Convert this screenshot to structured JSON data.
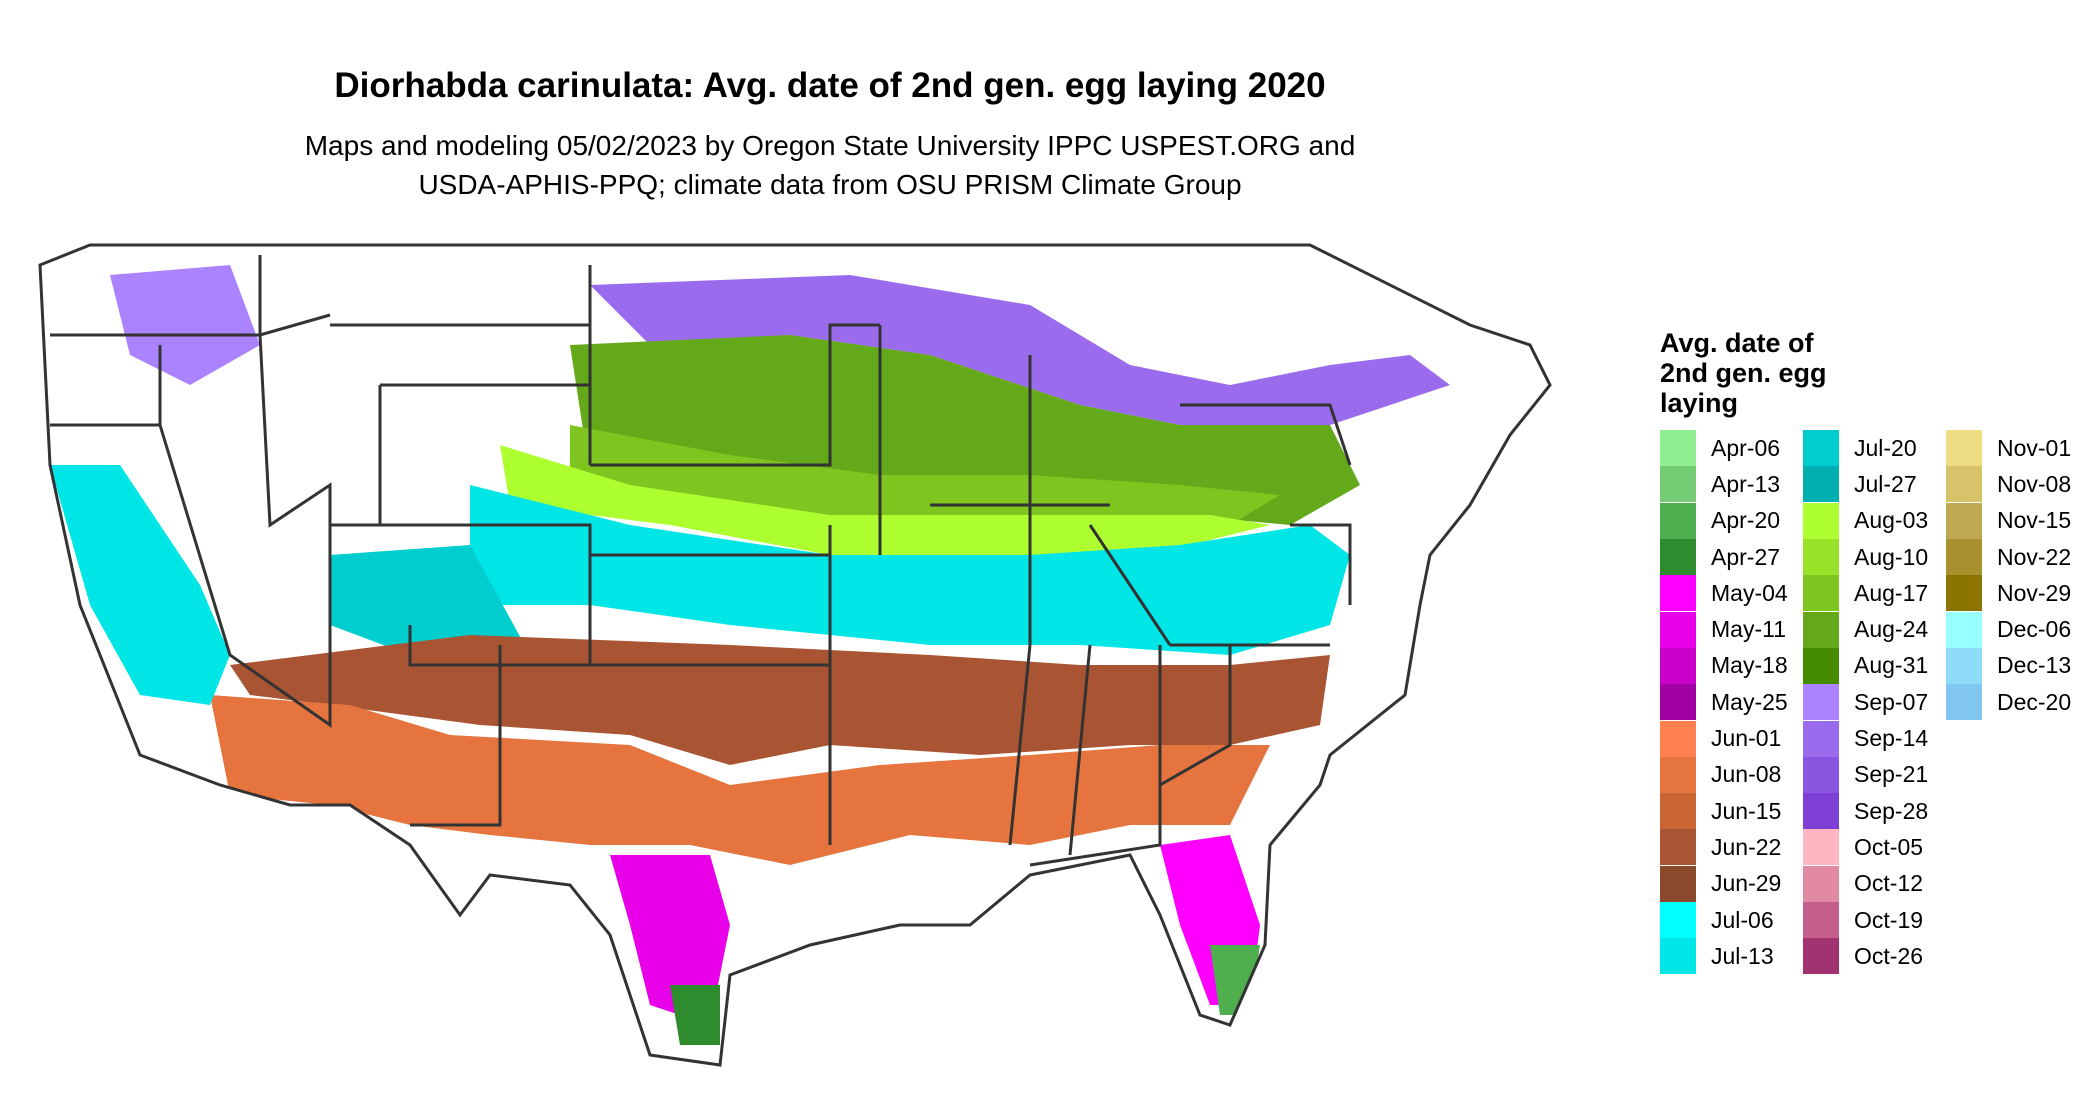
{
  "title": "Diorhabda carinulata: Avg. date of 2nd gen. egg laying 2020",
  "subtitle_line1": "Maps and modeling 05/02/2023 by Oregon State University IPPC USPEST.ORG and",
  "subtitle_line2": "USDA-APHIS-PPQ; climate data from OSU PRISM Climate Group",
  "legend": {
    "title_lines": [
      "Avg. date of",
      "2nd gen. egg",
      "laying"
    ],
    "columns": [
      [
        {
          "label": "Apr-06",
          "color": "#90EE90"
        },
        {
          "label": "Apr-13",
          "color": "#74CC74"
        },
        {
          "label": "Apr-20",
          "color": "#4FAF4F"
        },
        {
          "label": "Apr-27",
          "color": "#2E8B2E"
        },
        {
          "label": "May-04",
          "color": "#FF00FF"
        },
        {
          "label": "May-11",
          "color": "#E800E8"
        },
        {
          "label": "May-18",
          "color": "#CC00CC"
        },
        {
          "label": "May-25",
          "color": "#A300A3"
        },
        {
          "label": "Jun-01",
          "color": "#FF7F50"
        },
        {
          "label": "Jun-08",
          "color": "#E5743F"
        },
        {
          "label": "Jun-15",
          "color": "#C96433"
        },
        {
          "label": "Jun-22",
          "color": "#A95432"
        },
        {
          "label": "Jun-29",
          "color": "#8B4A2B"
        },
        {
          "label": "Jul-06",
          "color": "#00FFFF"
        },
        {
          "label": "Jul-13",
          "color": "#00E5E5"
        }
      ],
      [
        {
          "label": "Jul-20",
          "color": "#00CDCD"
        },
        {
          "label": "Jul-27",
          "color": "#00AFAF"
        },
        {
          "label": "Aug-03",
          "color": "#ADFF2F"
        },
        {
          "label": "Aug-10",
          "color": "#98E22A"
        },
        {
          "label": "Aug-17",
          "color": "#7FC520"
        },
        {
          "label": "Aug-24",
          "color": "#63A919"
        },
        {
          "label": "Aug-31",
          "color": "#458B00"
        },
        {
          "label": "Sep-07",
          "color": "#AB82FF"
        },
        {
          "label": "Sep-14",
          "color": "#9B6BEE"
        },
        {
          "label": "Sep-21",
          "color": "#8A55E0"
        },
        {
          "label": "Sep-28",
          "color": "#7D3FD6"
        },
        {
          "label": "Oct-05",
          "color": "#FFB6C1"
        },
        {
          "label": "Oct-12",
          "color": "#E38AA3"
        },
        {
          "label": "Oct-19",
          "color": "#C45E8B"
        },
        {
          "label": "Oct-26",
          "color": "#A33370"
        }
      ],
      [
        {
          "label": "Nov-01",
          "color": "#EEDC82"
        },
        {
          "label": "Nov-08",
          "color": "#D6C36A"
        },
        {
          "label": "Nov-15",
          "color": "#BFA852"
        },
        {
          "label": "Nov-22",
          "color": "#A8902F"
        },
        {
          "label": "Nov-29",
          "color": "#8B7500"
        },
        {
          "label": "Dec-06",
          "color": "#97FFFF"
        },
        {
          "label": "Dec-13",
          "color": "#8EDCF8"
        },
        {
          "label": "Dec-20",
          "color": "#82C6F2"
        }
      ]
    ]
  },
  "map_colors": {
    "background": "#ffffff",
    "border": "#333333"
  }
}
